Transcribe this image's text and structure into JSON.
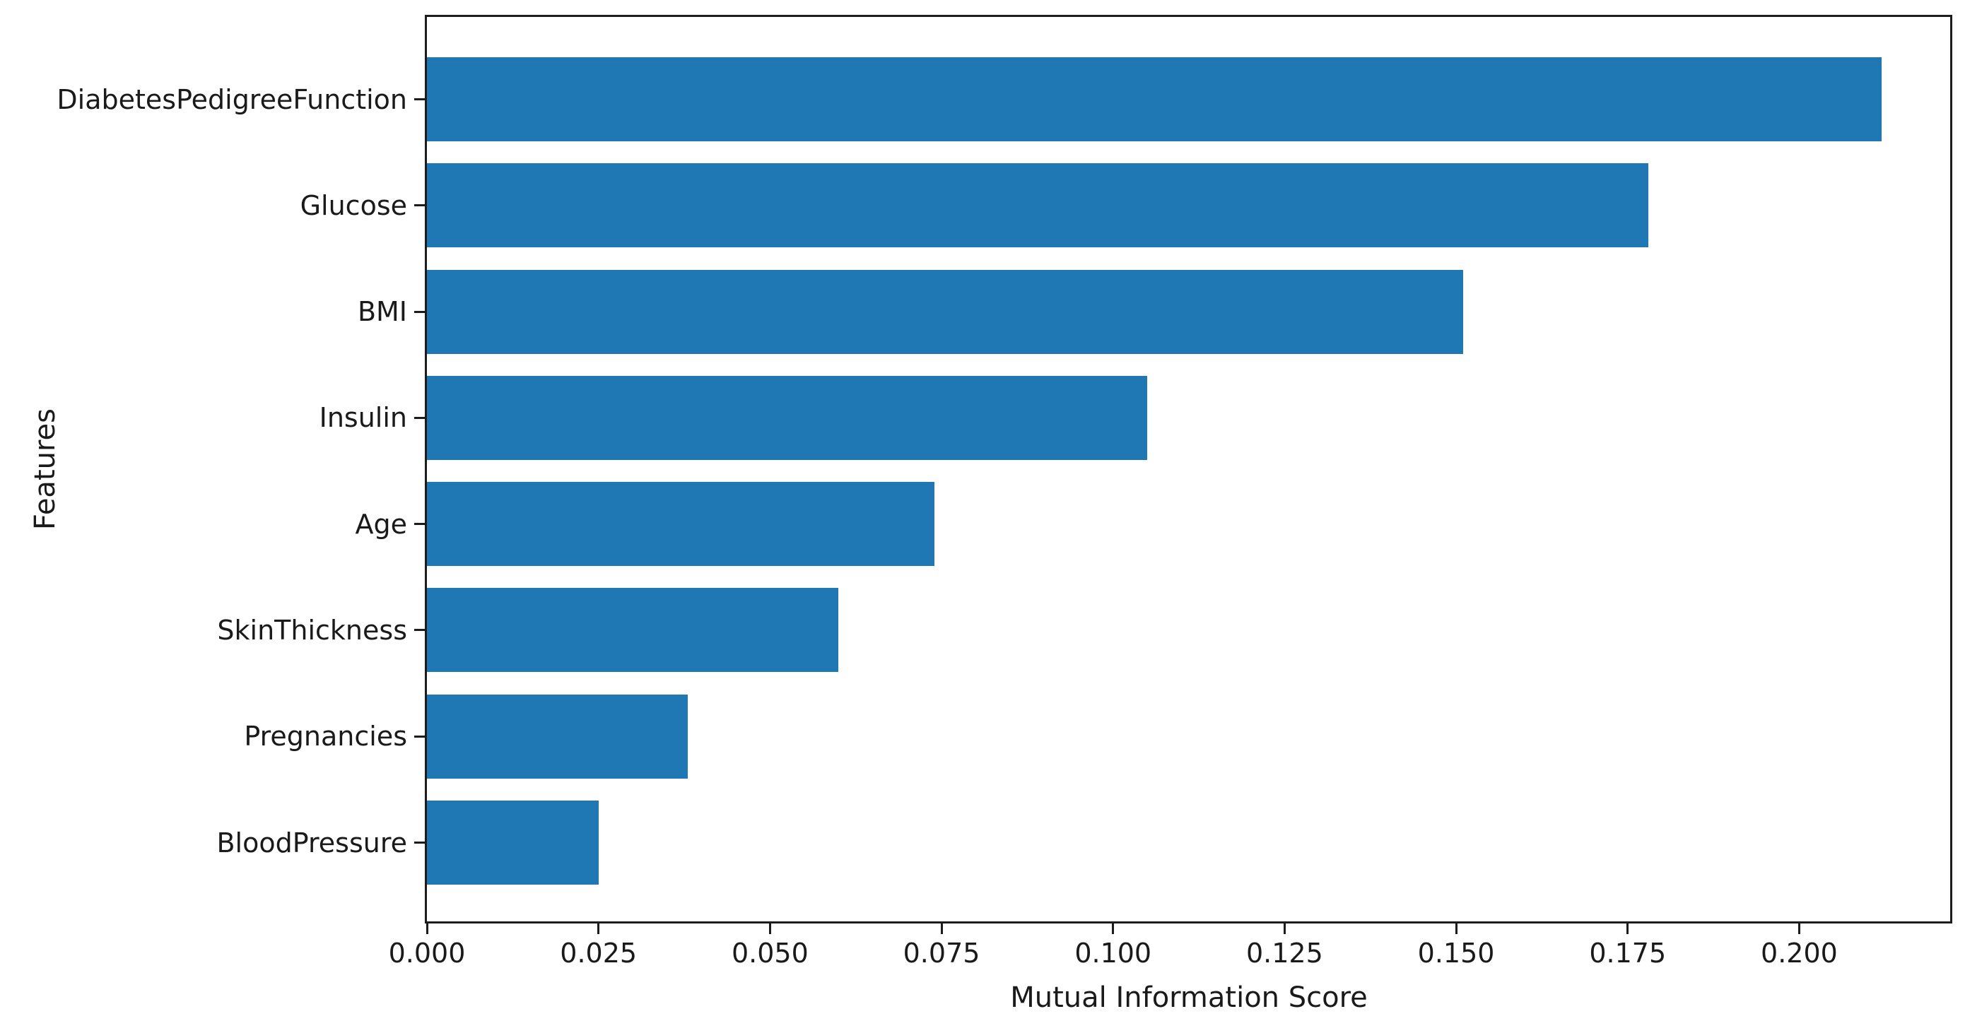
{
  "chart_data": {
    "type": "bar",
    "orientation": "horizontal",
    "title": "",
    "xlabel": "Mutual Information Score",
    "ylabel": "Features",
    "categories": [
      "DiabetesPedigreeFunction",
      "Glucose",
      "BMI",
      "Insulin",
      "Age",
      "SkinThickness",
      "Pregnancies",
      "BloodPressure"
    ],
    "values": [
      0.212,
      0.178,
      0.151,
      0.105,
      0.074,
      0.06,
      0.038,
      0.025
    ],
    "xlim": [
      0,
      0.222
    ],
    "xtick_values": [
      0,
      0.025,
      0.05,
      0.075,
      0.1,
      0.125,
      0.15,
      0.175,
      0.2
    ],
    "xtick_labels": [
      "0.000",
      "0.025",
      "0.050",
      "0.075",
      "0.100",
      "0.125",
      "0.150",
      "0.175",
      "0.200"
    ],
    "bar_color": "#1f77b4",
    "spine_color": "#1c1c1c",
    "grid": false,
    "legend": null
  }
}
